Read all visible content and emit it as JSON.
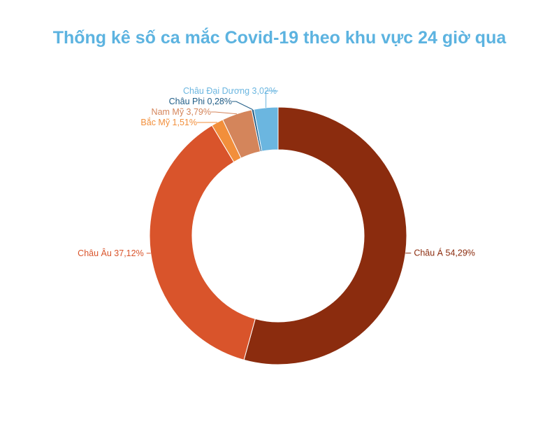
{
  "title": "Thống kê số ca mắc Covid-19 theo khu vực 24 giờ qua",
  "colors": {
    "title": "#5cb3e0"
  },
  "chart_data": {
    "type": "pie",
    "variant": "donut",
    "title": "Thống kê số ca mắc Covid-19 theo khu vực 24 giờ qua",
    "slices": [
      {
        "name": "Châu Á",
        "value": 54.29,
        "label": "Châu Á 54,29%",
        "color": "#8b2c0e"
      },
      {
        "name": "Châu Âu",
        "value": 37.12,
        "label": "Châu Âu 37,12%",
        "color": "#d9542b"
      },
      {
        "name": "Bắc Mỹ",
        "value": 1.51,
        "label": "Bắc Mỹ 1,51%",
        "color": "#f28f3b"
      },
      {
        "name": "Nam Mỹ",
        "value": 3.79,
        "label": "Nam Mỹ 3,79%",
        "color": "#d4855b"
      },
      {
        "name": "Châu Phi",
        "value": 0.28,
        "label": "Châu Phi  0,28%",
        "color": "#1f5c86"
      },
      {
        "name": "Châu Đại Dương",
        "value": 3.02,
        "label": "Châu Đại Dương 3,02%",
        "color": "#6bb6e0"
      }
    ]
  }
}
